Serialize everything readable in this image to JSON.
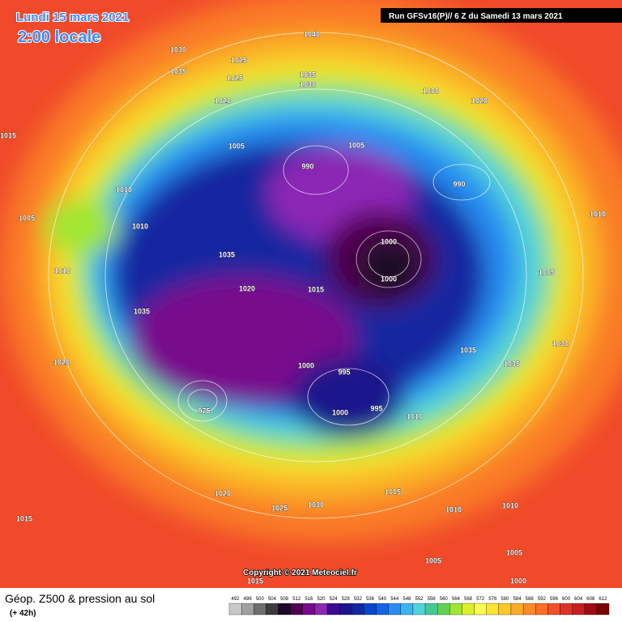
{
  "header": {
    "date": "Lundi 15 mars 2021",
    "time": "2:00 locale",
    "run": "Run GFSv16(P)// 6 Z du Samedi 13 mars 2021"
  },
  "map": {
    "copyright": "Copyright © 2021 Meteociel.fr",
    "pressure_labels": [
      1040,
      1030,
      1035,
      1025,
      1025,
      1035,
      1030,
      1020,
      1005,
      990,
      1005,
      1000,
      1000,
      1015,
      1020,
      1035,
      1035,
      975,
      995,
      1000,
      995,
      1000,
      1010,
      1035,
      1035,
      1010,
      1030,
      1005,
      1020,
      1000,
      990,
      1010,
      1010,
      1020,
      1015,
      1020,
      1025,
      1030,
      1005,
      1010,
      1010,
      1005,
      1005,
      1000,
      1015,
      1010,
      1005,
      1015
    ]
  },
  "legend": {
    "title": "Géop. Z500 & pression au sol",
    "lead": "(+ 42h)",
    "values": [
      492,
      496,
      500,
      504,
      508,
      512,
      516,
      520,
      524,
      528,
      532,
      536,
      540,
      544,
      548,
      552,
      556,
      560,
      564,
      568,
      572,
      576,
      580,
      584,
      588,
      592,
      596,
      600,
      604,
      608,
      612
    ],
    "colors": [
      "#c8c8c8",
      "#a0a0a0",
      "#6e6e6e",
      "#3c3c3c",
      "#1e0a28",
      "#500050",
      "#780a8c",
      "#8c28b4",
      "#3c0a8c",
      "#1e148c",
      "#1428a0",
      "#0a46c8",
      "#1464e6",
      "#288cf0",
      "#3cb4f0",
      "#50d2dc",
      "#46c896",
      "#64d250",
      "#a0e632",
      "#dcf028",
      "#fafa50",
      "#fae632",
      "#fac828",
      "#faaa28",
      "#fa8c28",
      "#fa6e28",
      "#f05028",
      "#dc3228",
      "#c81e1e",
      "#a00a14",
      "#780000"
    ]
  }
}
